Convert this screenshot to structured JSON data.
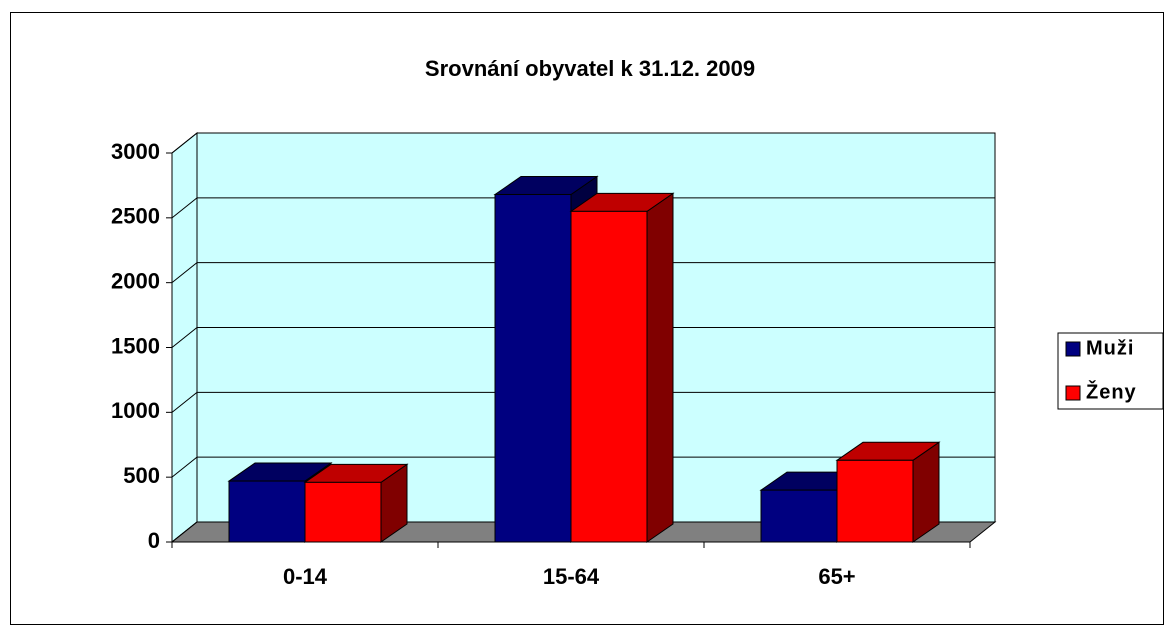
{
  "chart_data": {
    "type": "bar3d",
    "title": "Srovnání obyvatel k 31.12. 2009",
    "categories": [
      "0-14",
      "15-64",
      "65+"
    ],
    "series": [
      {
        "name": "Muži",
        "color": "#000080",
        "values": [
          470,
          2680,
          400
        ]
      },
      {
        "name": "Ženy",
        "color": "#ff0000",
        "values": [
          460,
          2550,
          630
        ]
      }
    ],
    "ylim": [
      0,
      3000
    ],
    "yticks": [
      0,
      500,
      1000,
      1500,
      2000,
      2500,
      3000
    ],
    "grid": true,
    "legend": "right",
    "wall_color": "#ccffff",
    "floor_color": "#808080"
  }
}
